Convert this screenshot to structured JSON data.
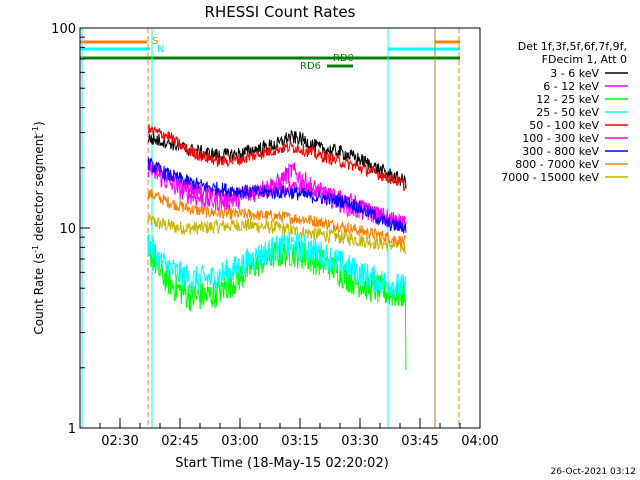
{
  "chart_data": {
    "type": "line",
    "title": "RHESSI Count Rates",
    "xlabel": "Start Time (18-May-15 02:20:02)",
    "ylabel_main": "Count Rate (s",
    "ylabel_sup1": "-1",
    "ylabel_mid": " detector segment",
    "ylabel_sup2": "-1",
    "ylabel_end": ")",
    "timestamp": "26-Oct-2021 03:12",
    "y_scale": "log",
    "ylim": [
      1,
      100
    ],
    "y_ticks": [
      {
        "value": 1,
        "label": "1"
      },
      {
        "value": 10,
        "label": "10"
      },
      {
        "value": 100,
        "label": "100"
      }
    ],
    "x_range_minutes": [
      0,
      100
    ],
    "x_ticks": [
      {
        "value": 10,
        "label": "02:30"
      },
      {
        "value": 25,
        "label": "02:45"
      },
      {
        "value": 40,
        "label": "03:00"
      },
      {
        "value": 55,
        "label": "03:15"
      },
      {
        "value": 70,
        "label": "03:30"
      },
      {
        "value": 85,
        "label": "03:45"
      },
      {
        "value": 100,
        "label": "04:00"
      }
    ],
    "legend_header": [
      "Det 1f,3f,5f,6f,7f,9f,",
      "FDecim 1, Att 0"
    ],
    "legend_position": "right",
    "series": [
      {
        "name": "3 - 6 keV",
        "color": "#000000",
        "points": [
          [
            17,
            28
          ],
          [
            22,
            27
          ],
          [
            26,
            25
          ],
          [
            30,
            24
          ],
          [
            35,
            23
          ],
          [
            40,
            23.5
          ],
          [
            45,
            25
          ],
          [
            50,
            26.5
          ],
          [
            52,
            28.5
          ],
          [
            55,
            28
          ],
          [
            60,
            25
          ],
          [
            65,
            24
          ],
          [
            70,
            22
          ],
          [
            75,
            19.5
          ],
          [
            80,
            17.5
          ],
          [
            81.5,
            17
          ]
        ]
      },
      {
        "name": "6 - 12 keV",
        "color": "#ff00ff",
        "points": [
          [
            17,
            20
          ],
          [
            20,
            18
          ],
          [
            25,
            15.5
          ],
          [
            30,
            14
          ],
          [
            35,
            13.5
          ],
          [
            40,
            14
          ],
          [
            45,
            15.5
          ],
          [
            50,
            17
          ],
          [
            53,
            19.5
          ],
          [
            55,
            18
          ],
          [
            58,
            16
          ],
          [
            63,
            14
          ],
          [
            68,
            12.5
          ],
          [
            73,
            11.8
          ],
          [
            78,
            11
          ],
          [
            81.5,
            10.5
          ]
        ]
      },
      {
        "name": "12 - 25 keV",
        "color": "#00ff00",
        "points": [
          [
            17,
            8
          ],
          [
            20,
            6
          ],
          [
            24,
            5
          ],
          [
            28,
            4.5
          ],
          [
            33,
            4.6
          ],
          [
            38,
            5.3
          ],
          [
            43,
            6.4
          ],
          [
            48,
            7.3
          ],
          [
            53,
            7.6
          ],
          [
            58,
            7
          ],
          [
            63,
            6.4
          ],
          [
            68,
            5.5
          ],
          [
            73,
            5
          ],
          [
            78,
            4.7
          ],
          [
            80,
            4.6
          ],
          [
            81.3,
            4.8
          ],
          [
            81.5,
            1.8
          ]
        ]
      },
      {
        "name": "25 - 50 keV",
        "color": "#00ffff",
        "points": [
          [
            17,
            8.5
          ],
          [
            20,
            6.8
          ],
          [
            24,
            6
          ],
          [
            28,
            5.5
          ],
          [
            33,
            5.6
          ],
          [
            38,
            6.1
          ],
          [
            43,
            7
          ],
          [
            48,
            7.8
          ],
          [
            53,
            8.2
          ],
          [
            58,
            7.8
          ],
          [
            63,
            7
          ],
          [
            68,
            6.2
          ],
          [
            73,
            5.6
          ],
          [
            78,
            5.2
          ],
          [
            81.5,
            5
          ]
        ]
      },
      {
        "name": "50 - 100 keV",
        "color": "#ff0000",
        "points": [
          [
            17,
            31
          ],
          [
            22,
            29
          ],
          [
            26,
            25
          ],
          [
            30,
            23
          ],
          [
            35,
            21.5
          ],
          [
            40,
            22
          ],
          [
            45,
            23.5
          ],
          [
            50,
            25
          ],
          [
            53,
            25.5
          ],
          [
            55,
            25
          ],
          [
            60,
            23
          ],
          [
            65,
            21.5
          ],
          [
            70,
            20
          ],
          [
            75,
            18.5
          ],
          [
            80,
            17
          ],
          [
            81.5,
            16
          ]
        ]
      },
      {
        "name": "100 - 300 keV",
        "color": "#ff00ff",
        "points": [
          [
            17,
            21
          ],
          [
            22,
            18
          ],
          [
            27,
            16
          ],
          [
            32,
            15
          ],
          [
            37,
            14.5
          ],
          [
            42,
            15
          ],
          [
            47,
            15.5
          ],
          [
            52,
            16
          ],
          [
            57,
            15.5
          ],
          [
            62,
            14.8
          ],
          [
            67,
            14
          ],
          [
            72,
            12.5
          ],
          [
            77,
            11
          ],
          [
            81.5,
            10.5
          ]
        ]
      },
      {
        "name": "300 - 800 keV",
        "color": "#0000ff",
        "points": [
          [
            17,
            21
          ],
          [
            22,
            18.5
          ],
          [
            27,
            17
          ],
          [
            32,
            16
          ],
          [
            37,
            15.5
          ],
          [
            42,
            15.2
          ],
          [
            47,
            15
          ],
          [
            52,
            15.2
          ],
          [
            57,
            14.5
          ],
          [
            62,
            14
          ],
          [
            67,
            13.5
          ],
          [
            72,
            12
          ],
          [
            77,
            10.5
          ],
          [
            81.5,
            10
          ]
        ]
      },
      {
        "name": "800 - 7000 keV",
        "color": "#ff8000",
        "points": [
          [
            17,
            15
          ],
          [
            22,
            13.5
          ],
          [
            27,
            12.5
          ],
          [
            32,
            12
          ],
          [
            37,
            11.8
          ],
          [
            42,
            11.7
          ],
          [
            47,
            11.5
          ],
          [
            52,
            11.3
          ],
          [
            57,
            11
          ],
          [
            62,
            10.5
          ],
          [
            67,
            10
          ],
          [
            72,
            9.5
          ],
          [
            77,
            9
          ],
          [
            81.5,
            8.5
          ]
        ]
      },
      {
        "name": "7000 - 15000 keV",
        "color": "#c8b400",
        "points": [
          [
            17,
            11
          ],
          [
            20,
            10.5
          ],
          [
            25,
            10
          ],
          [
            30,
            10
          ],
          [
            35,
            10.2
          ],
          [
            40,
            10.4
          ],
          [
            45,
            10.2
          ],
          [
            50,
            10
          ],
          [
            55,
            9.5
          ],
          [
            60,
            9.3
          ],
          [
            65,
            9
          ],
          [
            70,
            8.7
          ],
          [
            75,
            8.4
          ],
          [
            81.5,
            8
          ]
        ]
      }
    ],
    "annotations": [
      {
        "label": "S",
        "color": "#ff8000"
      },
      {
        "label": "N",
        "color": "#00ffff"
      },
      {
        "label": "RD0",
        "color": "#008000"
      },
      {
        "label": "RD6",
        "color": "#008000"
      }
    ],
    "overlay_colors": {
      "orange": "#ff8000",
      "cyan": "#00ffff",
      "green": "#008000",
      "olive": "#c08000"
    }
  }
}
